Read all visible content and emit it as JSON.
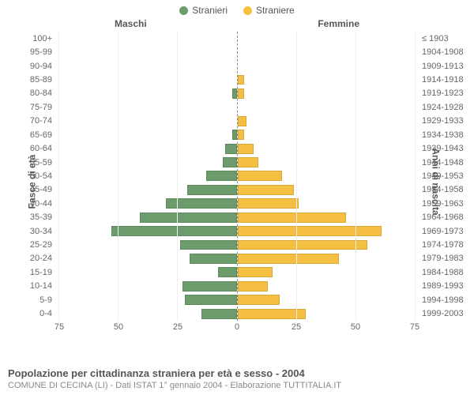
{
  "legend": {
    "male": "Stranieri",
    "female": "Straniere"
  },
  "columns": {
    "left": "Maschi",
    "right": "Femmine"
  },
  "axis": {
    "left": "Fasce di età",
    "right": "Anni di nascita"
  },
  "chart": {
    "type": "population-pyramid",
    "male_color": "#6c9b6c",
    "female_color": "#f5bf42",
    "grid_color": "#eeeeee",
    "background_color": "#ffffff",
    "xmax": 75,
    "xticks": [
      75,
      50,
      25,
      0,
      25,
      50,
      75
    ],
    "age_labels": [
      "100+",
      "95-99",
      "90-94",
      "85-89",
      "80-84",
      "75-79",
      "70-74",
      "65-69",
      "60-64",
      "55-59",
      "50-54",
      "45-49",
      "40-44",
      "35-39",
      "30-34",
      "25-29",
      "20-24",
      "15-19",
      "10-14",
      "5-9",
      "0-4"
    ],
    "birth_labels": [
      "≤ 1903",
      "1904-1908",
      "1909-1913",
      "1914-1918",
      "1919-1923",
      "1924-1928",
      "1929-1933",
      "1934-1938",
      "1939-1943",
      "1944-1948",
      "1949-1953",
      "1954-1958",
      "1959-1963",
      "1964-1968",
      "1969-1973",
      "1974-1978",
      "1979-1983",
      "1984-1988",
      "1989-1993",
      "1994-1998",
      "1999-2003"
    ],
    "male_values": [
      0,
      0,
      0,
      0,
      2,
      0,
      0,
      2,
      5,
      6,
      13,
      21,
      30,
      41,
      53,
      24,
      20,
      8,
      23,
      22,
      15
    ],
    "female_values": [
      0,
      0,
      0,
      3,
      3,
      0,
      4,
      3,
      7,
      9,
      19,
      24,
      26,
      46,
      61,
      55,
      43,
      15,
      13,
      18,
      29
    ]
  },
  "footer": {
    "title": "Popolazione per cittadinanza straniera per età e sesso - 2004",
    "subtitle": "COMUNE DI CECINA (LI) - Dati ISTAT 1° gennaio 2004 - Elaborazione TUTTITALIA.IT"
  }
}
